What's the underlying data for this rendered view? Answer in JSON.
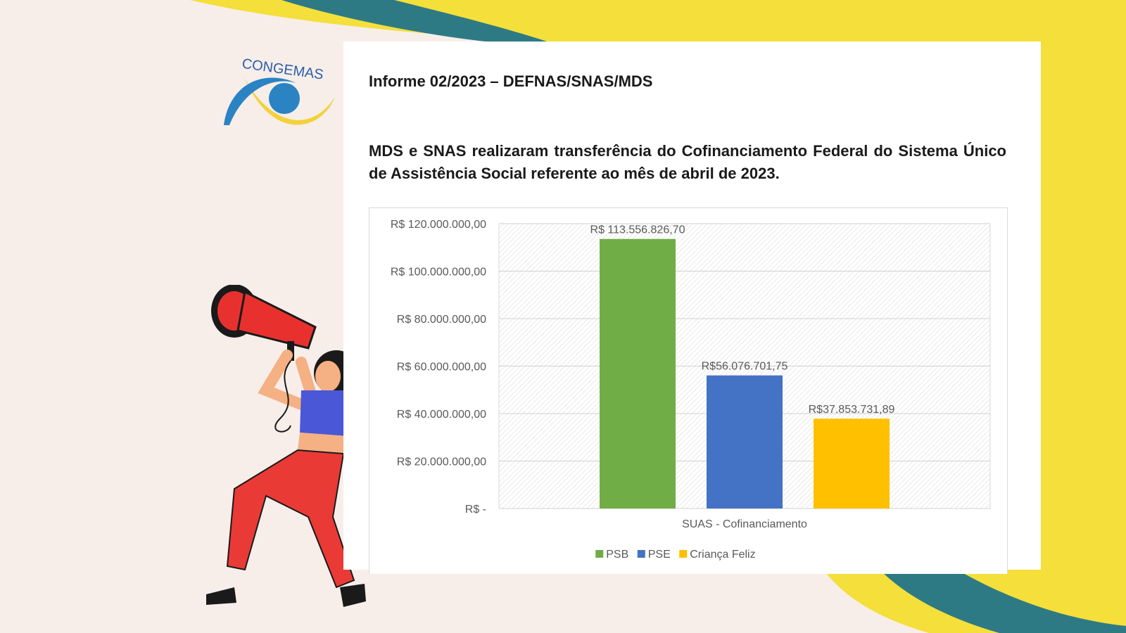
{
  "logo": {
    "text": "CONGEMAS"
  },
  "document": {
    "informe": "Informe 02/2023 – DEFNAS/SNAS/MDS",
    "headline": "MDS e SNAS realizaram transferência do Cofinanciamento Federal do Sistema Único de Assistência Social referente ao mês de abril de 2023."
  },
  "colors": {
    "yellow": "#f4df3b",
    "teal": "#2e7a84",
    "psb": "#70ad47",
    "pse": "#4472c4",
    "crianca": "#ffc000"
  },
  "chart_data": {
    "type": "bar",
    "title": "",
    "xlabel": "",
    "ylabel": "",
    "categories": [
      "SUAS - Cofinanciamento"
    ],
    "series": [
      {
        "name": "PSB",
        "values": [
          113556826.7
        ],
        "label": "R$ 113.556.826,70",
        "color": "#70ad47"
      },
      {
        "name": "PSE",
        "values": [
          56076701.75
        ],
        "label": "R$56.076.701,75",
        "color": "#4472c4"
      },
      {
        "name": "Criança Feliz",
        "values": [
          37853731.89
        ],
        "label": "R$37.853.731,89",
        "color": "#ffc000"
      }
    ],
    "ylim": [
      0,
      120000000
    ],
    "yticks": [
      {
        "value": 120000000,
        "label": "R$ 120.000.000,00"
      },
      {
        "value": 100000000,
        "label": "R$ 100.000.000,00"
      },
      {
        "value": 80000000,
        "label": "R$ 80.000.000,00"
      },
      {
        "value": 60000000,
        "label": "R$ 60.000.000,00"
      },
      {
        "value": 40000000,
        "label": "R$ 40.000.000,00"
      },
      {
        "value": 20000000,
        "label": "R$ 20.000.000,00"
      },
      {
        "value": 0,
        "label": "R$ -"
      }
    ],
    "grid": true,
    "legend_position": "bottom"
  }
}
